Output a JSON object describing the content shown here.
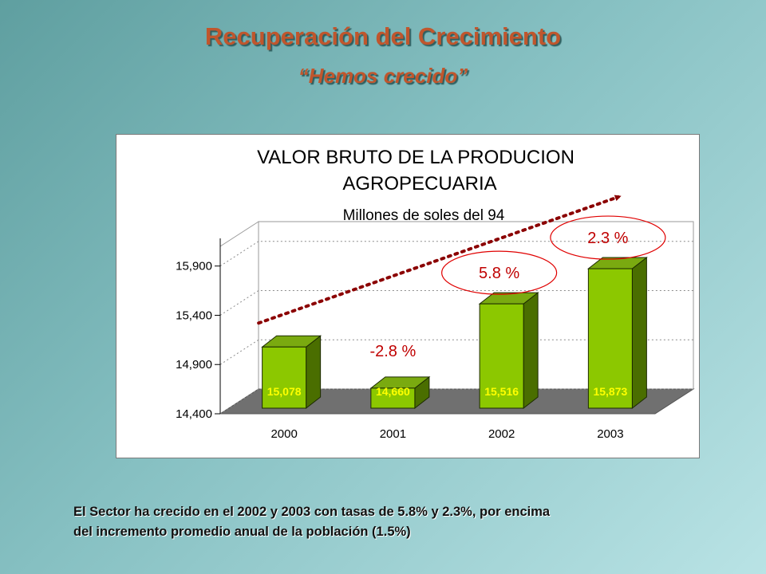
{
  "slide": {
    "title": "Recuperación del Crecimiento",
    "subtitle": "“Hemos crecido”",
    "note_line1": "El Sector ha crecido en el 2002 y 2003 con tasas de 5.8% y 2.3%,  por encima",
    "note_line2": "del incremento promedio anual de la población (1.5%)"
  },
  "chart_data": {
    "type": "bar",
    "title_line1": "VALOR BRUTO DE LA PRODUCION",
    "title_line2": "AGROPECUARIA",
    "subtitle": "Millones de soles del 94",
    "categories": [
      "2000",
      "2001",
      "2002",
      "2003"
    ],
    "values": [
      15078,
      14660,
      15516,
      15873
    ],
    "value_labels": [
      "15,078",
      "14,660",
      "15,516",
      "15,873"
    ],
    "yticks": [
      "14,400",
      "14,900",
      "15,400",
      "15,900"
    ],
    "ylim": [
      14400,
      16100
    ],
    "growth_annotations": [
      {
        "category": "2001",
        "label": "-2.8 %",
        "circled": false
      },
      {
        "category": "2002",
        "label": "5.8 %",
        "circled": true
      },
      {
        "category": "2003",
        "label": "2.3 %",
        "circled": true
      }
    ],
    "grid": true,
    "view": "3d",
    "trend_arrow": true,
    "colors": {
      "bar_front": "#8cc800",
      "bar_side": "#4a6e00",
      "bar_top": "#7aaa10",
      "value_label": "#ffff00",
      "growth_label": "#c00000",
      "trend": "#8b0000",
      "floor": "#707070"
    }
  }
}
